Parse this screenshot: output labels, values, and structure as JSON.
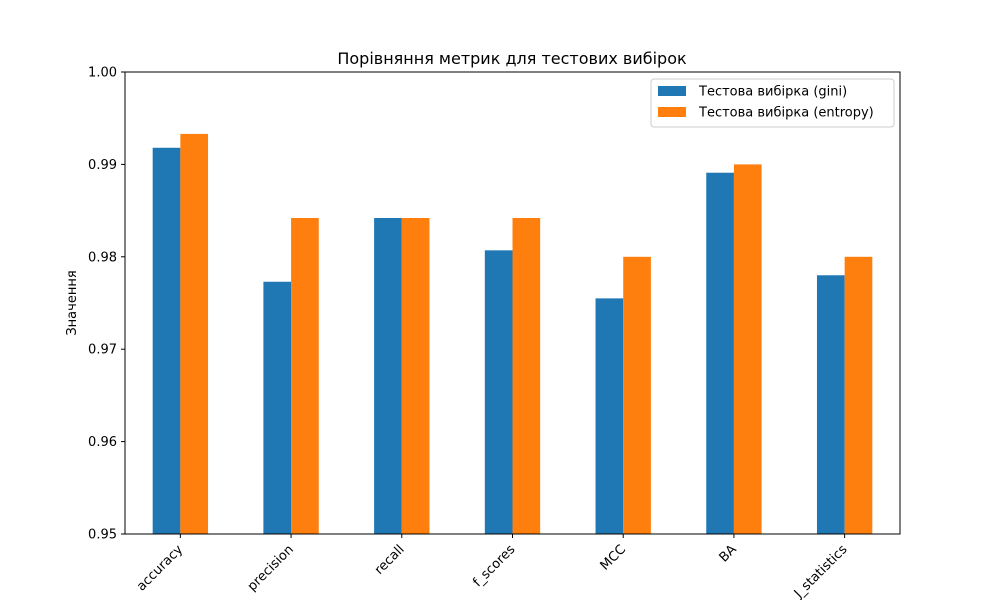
{
  "chart_data": {
    "type": "bar",
    "title": "Порівняння метрик для тестових вибірок",
    "xlabel": "",
    "ylabel": "Значення",
    "ylim": [
      0.95,
      1.0
    ],
    "yticks": [
      "0.95",
      "0.96",
      "0.97",
      "0.98",
      "0.99",
      "1.00"
    ],
    "categories": [
      "accuracy",
      "precision",
      "recall",
      "f_scores",
      "MCC",
      "BA",
      "J_statistics"
    ],
    "series": [
      {
        "name": "Тестова вибірка (gini)",
        "color": "#1f77b4",
        "values": [
          0.9918,
          0.9773,
          0.9842,
          0.9807,
          0.9755,
          0.9891,
          0.978
        ]
      },
      {
        "name": "Тестова вибірка (entropy)",
        "color": "#ff7f0e",
        "values": [
          0.9933,
          0.9842,
          0.9842,
          0.9842,
          0.98,
          0.99,
          0.98
        ]
      }
    ],
    "grid": false,
    "legend_position": "top-right"
  }
}
